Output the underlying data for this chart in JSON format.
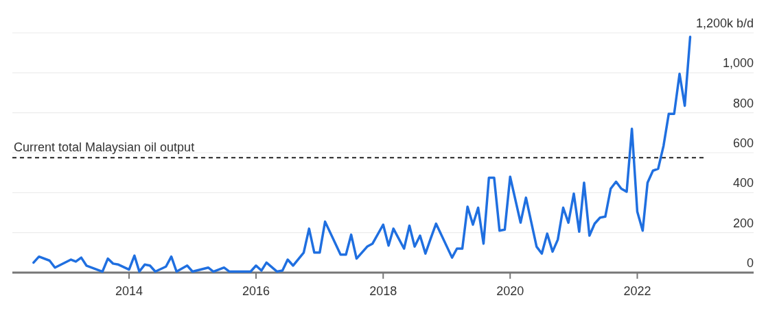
{
  "chart_data": {
    "type": "line",
    "x": [
      "2012-07",
      "2012-08",
      "2012-10",
      "2012-11",
      "2013-02",
      "2013-03",
      "2013-04",
      "2013-05",
      "2013-08",
      "2013-09",
      "2013-10",
      "2013-11",
      "2014-01",
      "2014-02",
      "2014-03",
      "2014-04",
      "2014-05",
      "2014-06",
      "2014-08",
      "2014-09",
      "2014-10",
      "2014-12",
      "2015-01",
      "2015-04",
      "2015-05",
      "2015-07",
      "2015-08",
      "2015-12",
      "2016-01",
      "2016-02",
      "2016-03",
      "2016-05",
      "2016-06",
      "2016-07",
      "2016-08",
      "2016-10",
      "2016-11",
      "2016-12",
      "2017-01",
      "2017-02",
      "2017-05",
      "2017-06",
      "2017-07",
      "2017-08",
      "2017-10",
      "2017-11",
      "2018-01",
      "2018-02",
      "2018-03",
      "2018-05",
      "2018-06",
      "2018-07",
      "2018-08",
      "2018-09",
      "2018-10",
      "2018-11",
      "2019-02",
      "2019-03",
      "2019-04",
      "2019-05",
      "2019-06",
      "2019-07",
      "2019-08",
      "2019-09",
      "2019-10",
      "2019-11",
      "2019-12",
      "2020-01",
      "2020-03",
      "2020-04",
      "2020-06",
      "2020-07",
      "2020-08",
      "2020-09",
      "2020-10",
      "2020-11",
      "2020-12",
      "2021-01",
      "2021-02",
      "2021-03",
      "2021-04",
      "2021-05",
      "2021-06",
      "2021-07",
      "2021-08",
      "2021-09",
      "2021-10",
      "2021-11",
      "2021-12",
      "2022-01",
      "2022-02",
      "2022-03",
      "2022-04",
      "2022-05",
      "2022-06",
      "2022-07",
      "2022-08",
      "2022-09",
      "2022-10",
      "2022-11"
    ],
    "series": [
      {
        "color": "#1f6fe0",
        "values": [
          50,
          80,
          60,
          25,
          65,
          55,
          75,
          35,
          5,
          70,
          45,
          40,
          15,
          85,
          5,
          40,
          35,
          5,
          30,
          80,
          5,
          35,
          5,
          25,
          5,
          25,
          5,
          5,
          35,
          10,
          50,
          5,
          10,
          65,
          35,
          100,
          220,
          100,
          100,
          255,
          90,
          90,
          190,
          70,
          130,
          145,
          240,
          135,
          220,
          120,
          235,
          130,
          185,
          95,
          170,
          245,
          75,
          120,
          120,
          330,
          240,
          325,
          145,
          475,
          475,
          210,
          215,
          480,
          250,
          375,
          130,
          95,
          195,
          105,
          165,
          325,
          250,
          395,
          205,
          450,
          185,
          245,
          275,
          280,
          420,
          455,
          420,
          405,
          720,
          305,
          210,
          450,
          510,
          520,
          635,
          795,
          795,
          995,
          835,
          1180
        ]
      }
    ],
    "xlim": [
      "2012-03",
      "2023-11"
    ],
    "xticks": [
      "2014",
      "2016",
      "2018",
      "2020",
      "2022"
    ],
    "ylim": [
      0,
      1200
    ],
    "yticks": [
      0,
      200,
      400,
      600,
      800,
      {
        "value": 1000,
        "label": "1,000"
      },
      {
        "value": 1200,
        "label": "1,200k b/d"
      }
    ],
    "grid": "y",
    "ref_lines": [
      {
        "axis": "y",
        "value": 575,
        "label": "Current total Malaysian oil output",
        "color": "#222222",
        "line_style": "dashed"
      }
    ]
  }
}
